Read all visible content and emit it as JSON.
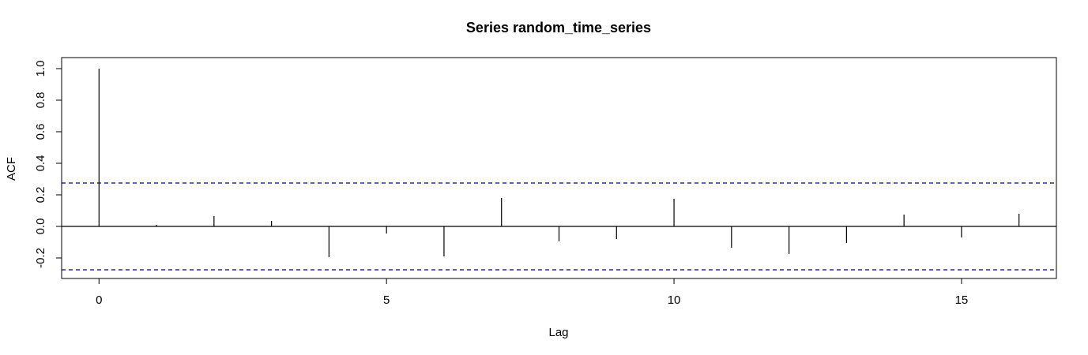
{
  "chart_data": {
    "type": "bar",
    "title": "Series  random_time_series",
    "xlabel": "Lag",
    "ylabel": "ACF",
    "xlim": [
      -0.65,
      16.65
    ],
    "ylim": [
      -0.33,
      1.07
    ],
    "x_ticks": [
      {
        "value": 0,
        "label": "0"
      },
      {
        "value": 5,
        "label": "5"
      },
      {
        "value": 10,
        "label": "10"
      },
      {
        "value": 15,
        "label": "15"
      }
    ],
    "y_ticks": [
      {
        "value": -0.2,
        "label": "-0.2"
      },
      {
        "value": 0.0,
        "label": "0.0"
      },
      {
        "value": 0.2,
        "label": "0.2"
      },
      {
        "value": 0.4,
        "label": "0.4"
      },
      {
        "value": 0.6,
        "label": "0.6"
      },
      {
        "value": 0.8,
        "label": "0.8"
      },
      {
        "value": 1.0,
        "label": "1.0"
      }
    ],
    "lags": [
      0,
      1,
      2,
      3,
      4,
      5,
      6,
      7,
      8,
      9,
      10,
      11,
      12,
      13,
      14,
      15,
      16
    ],
    "acf": [
      1.0,
      0.01,
      0.065,
      0.035,
      -0.195,
      -0.045,
      -0.19,
      0.18,
      -0.095,
      -0.08,
      0.175,
      -0.135,
      -0.175,
      -0.105,
      0.075,
      -0.07,
      0.08
    ],
    "confidence_bound": 0.275,
    "grid": false,
    "colors": {
      "spike": "#000000",
      "zero_line": "#000000",
      "ci_line": "#00008b",
      "frame": "#000000"
    }
  }
}
